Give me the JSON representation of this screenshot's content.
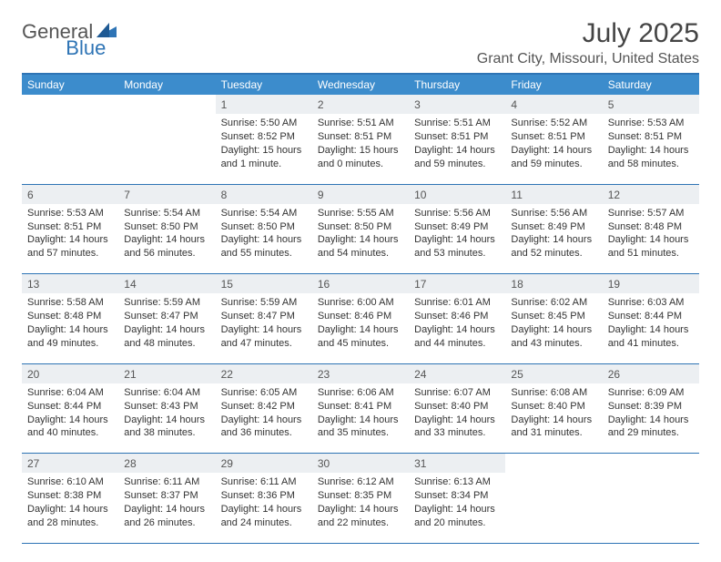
{
  "logo": {
    "part1": "General",
    "part2": "Blue"
  },
  "title": "July 2025",
  "location": "Grant City, Missouri, United States",
  "colors": {
    "header_bg": "#3c8ccc",
    "border": "#2e74b5",
    "daynum_bg": "#eceff2",
    "text": "#333333"
  },
  "weekdays": [
    "Sunday",
    "Monday",
    "Tuesday",
    "Wednesday",
    "Thursday",
    "Friday",
    "Saturday"
  ],
  "weeks": [
    {
      "nums": [
        "",
        "",
        "1",
        "2",
        "3",
        "4",
        "5"
      ],
      "cells": [
        null,
        null,
        {
          "sunrise": "Sunrise: 5:50 AM",
          "sunset": "Sunset: 8:52 PM",
          "day1": "Daylight: 15 hours",
          "day2": "and 1 minute."
        },
        {
          "sunrise": "Sunrise: 5:51 AM",
          "sunset": "Sunset: 8:51 PM",
          "day1": "Daylight: 15 hours",
          "day2": "and 0 minutes."
        },
        {
          "sunrise": "Sunrise: 5:51 AM",
          "sunset": "Sunset: 8:51 PM",
          "day1": "Daylight: 14 hours",
          "day2": "and 59 minutes."
        },
        {
          "sunrise": "Sunrise: 5:52 AM",
          "sunset": "Sunset: 8:51 PM",
          "day1": "Daylight: 14 hours",
          "day2": "and 59 minutes."
        },
        {
          "sunrise": "Sunrise: 5:53 AM",
          "sunset": "Sunset: 8:51 PM",
          "day1": "Daylight: 14 hours",
          "day2": "and 58 minutes."
        }
      ]
    },
    {
      "nums": [
        "6",
        "7",
        "8",
        "9",
        "10",
        "11",
        "12"
      ],
      "cells": [
        {
          "sunrise": "Sunrise: 5:53 AM",
          "sunset": "Sunset: 8:51 PM",
          "day1": "Daylight: 14 hours",
          "day2": "and 57 minutes."
        },
        {
          "sunrise": "Sunrise: 5:54 AM",
          "sunset": "Sunset: 8:50 PM",
          "day1": "Daylight: 14 hours",
          "day2": "and 56 minutes."
        },
        {
          "sunrise": "Sunrise: 5:54 AM",
          "sunset": "Sunset: 8:50 PM",
          "day1": "Daylight: 14 hours",
          "day2": "and 55 minutes."
        },
        {
          "sunrise": "Sunrise: 5:55 AM",
          "sunset": "Sunset: 8:50 PM",
          "day1": "Daylight: 14 hours",
          "day2": "and 54 minutes."
        },
        {
          "sunrise": "Sunrise: 5:56 AM",
          "sunset": "Sunset: 8:49 PM",
          "day1": "Daylight: 14 hours",
          "day2": "and 53 minutes."
        },
        {
          "sunrise": "Sunrise: 5:56 AM",
          "sunset": "Sunset: 8:49 PM",
          "day1": "Daylight: 14 hours",
          "day2": "and 52 minutes."
        },
        {
          "sunrise": "Sunrise: 5:57 AM",
          "sunset": "Sunset: 8:48 PM",
          "day1": "Daylight: 14 hours",
          "day2": "and 51 minutes."
        }
      ]
    },
    {
      "nums": [
        "13",
        "14",
        "15",
        "16",
        "17",
        "18",
        "19"
      ],
      "cells": [
        {
          "sunrise": "Sunrise: 5:58 AM",
          "sunset": "Sunset: 8:48 PM",
          "day1": "Daylight: 14 hours",
          "day2": "and 49 minutes."
        },
        {
          "sunrise": "Sunrise: 5:59 AM",
          "sunset": "Sunset: 8:47 PM",
          "day1": "Daylight: 14 hours",
          "day2": "and 48 minutes."
        },
        {
          "sunrise": "Sunrise: 5:59 AM",
          "sunset": "Sunset: 8:47 PM",
          "day1": "Daylight: 14 hours",
          "day2": "and 47 minutes."
        },
        {
          "sunrise": "Sunrise: 6:00 AM",
          "sunset": "Sunset: 8:46 PM",
          "day1": "Daylight: 14 hours",
          "day2": "and 45 minutes."
        },
        {
          "sunrise": "Sunrise: 6:01 AM",
          "sunset": "Sunset: 8:46 PM",
          "day1": "Daylight: 14 hours",
          "day2": "and 44 minutes."
        },
        {
          "sunrise": "Sunrise: 6:02 AM",
          "sunset": "Sunset: 8:45 PM",
          "day1": "Daylight: 14 hours",
          "day2": "and 43 minutes."
        },
        {
          "sunrise": "Sunrise: 6:03 AM",
          "sunset": "Sunset: 8:44 PM",
          "day1": "Daylight: 14 hours",
          "day2": "and 41 minutes."
        }
      ]
    },
    {
      "nums": [
        "20",
        "21",
        "22",
        "23",
        "24",
        "25",
        "26"
      ],
      "cells": [
        {
          "sunrise": "Sunrise: 6:04 AM",
          "sunset": "Sunset: 8:44 PM",
          "day1": "Daylight: 14 hours",
          "day2": "and 40 minutes."
        },
        {
          "sunrise": "Sunrise: 6:04 AM",
          "sunset": "Sunset: 8:43 PM",
          "day1": "Daylight: 14 hours",
          "day2": "and 38 minutes."
        },
        {
          "sunrise": "Sunrise: 6:05 AM",
          "sunset": "Sunset: 8:42 PM",
          "day1": "Daylight: 14 hours",
          "day2": "and 36 minutes."
        },
        {
          "sunrise": "Sunrise: 6:06 AM",
          "sunset": "Sunset: 8:41 PM",
          "day1": "Daylight: 14 hours",
          "day2": "and 35 minutes."
        },
        {
          "sunrise": "Sunrise: 6:07 AM",
          "sunset": "Sunset: 8:40 PM",
          "day1": "Daylight: 14 hours",
          "day2": "and 33 minutes."
        },
        {
          "sunrise": "Sunrise: 6:08 AM",
          "sunset": "Sunset: 8:40 PM",
          "day1": "Daylight: 14 hours",
          "day2": "and 31 minutes."
        },
        {
          "sunrise": "Sunrise: 6:09 AM",
          "sunset": "Sunset: 8:39 PM",
          "day1": "Daylight: 14 hours",
          "day2": "and 29 minutes."
        }
      ]
    },
    {
      "nums": [
        "27",
        "28",
        "29",
        "30",
        "31",
        "",
        ""
      ],
      "cells": [
        {
          "sunrise": "Sunrise: 6:10 AM",
          "sunset": "Sunset: 8:38 PM",
          "day1": "Daylight: 14 hours",
          "day2": "and 28 minutes."
        },
        {
          "sunrise": "Sunrise: 6:11 AM",
          "sunset": "Sunset: 8:37 PM",
          "day1": "Daylight: 14 hours",
          "day2": "and 26 minutes."
        },
        {
          "sunrise": "Sunrise: 6:11 AM",
          "sunset": "Sunset: 8:36 PM",
          "day1": "Daylight: 14 hours",
          "day2": "and 24 minutes."
        },
        {
          "sunrise": "Sunrise: 6:12 AM",
          "sunset": "Sunset: 8:35 PM",
          "day1": "Daylight: 14 hours",
          "day2": "and 22 minutes."
        },
        {
          "sunrise": "Sunrise: 6:13 AM",
          "sunset": "Sunset: 8:34 PM",
          "day1": "Daylight: 14 hours",
          "day2": "and 20 minutes."
        },
        null,
        null
      ]
    }
  ]
}
